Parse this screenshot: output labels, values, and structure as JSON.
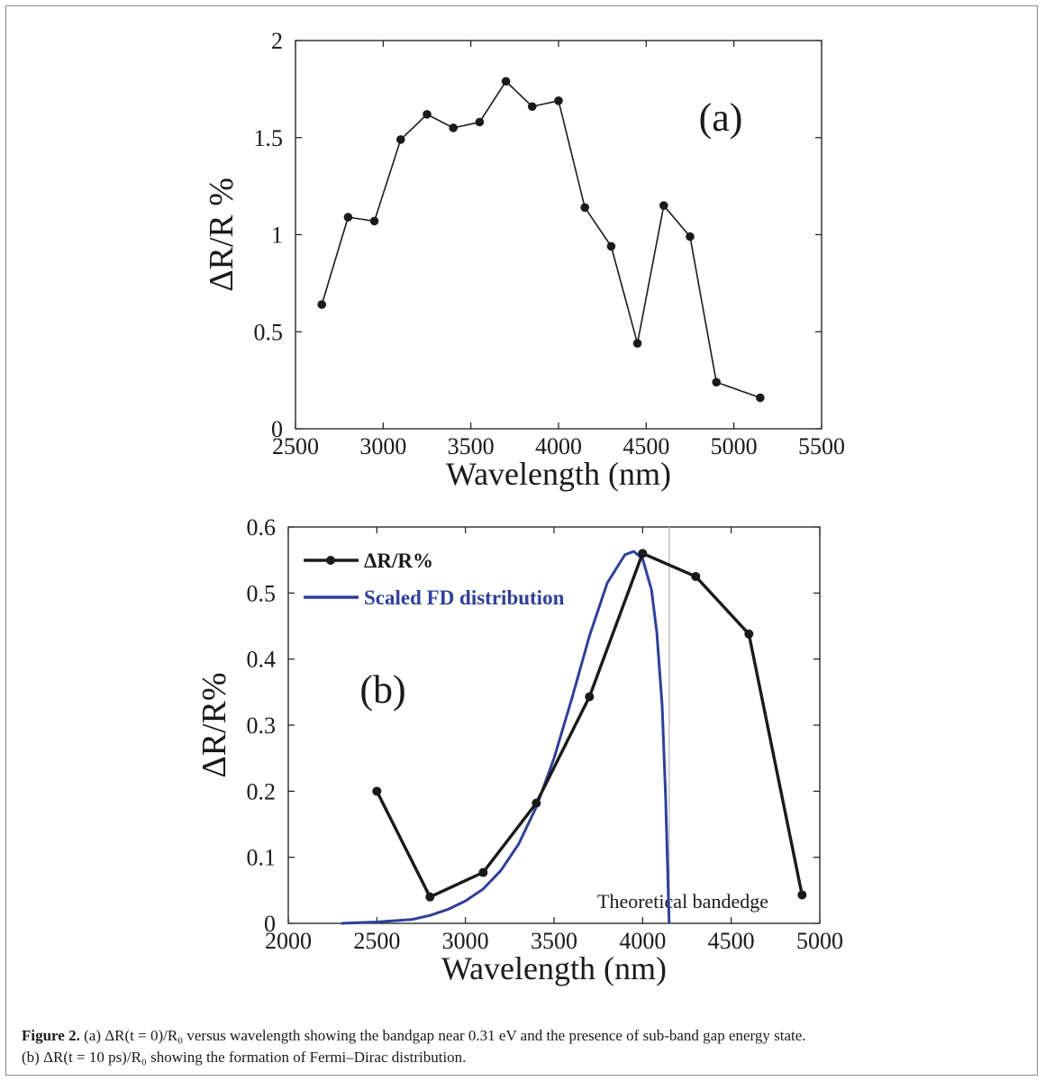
{
  "chart_data": [
    {
      "type": "line",
      "panel_label": "(a)",
      "xlabel": "Wavelength (nm)",
      "ylabel": "ΔR/R %",
      "xlim": [
        2500,
        5500
      ],
      "ylim": [
        0,
        2
      ],
      "xticks": [
        2500,
        3000,
        3500,
        4000,
        4500,
        5000,
        5500
      ],
      "yticks": [
        0,
        0.5,
        1,
        1.5,
        2
      ],
      "ytick_labels": [
        "0",
        "0.5",
        "1",
        "1.5",
        "2"
      ],
      "series": [
        {
          "x": [
            2650,
            2800,
            2950,
            3100,
            3250,
            3400,
            3550,
            3700,
            3850,
            4000,
            4150,
            4300,
            4450,
            4600,
            4750,
            4900,
            5150
          ],
          "y": [
            0.64,
            1.09,
            1.07,
            1.49,
            1.62,
            1.55,
            1.58,
            1.79,
            1.66,
            1.69,
            1.14,
            0.94,
            0.44,
            1.15,
            0.99,
            0.24,
            0.16
          ],
          "color": "#1a1a1a"
        }
      ]
    },
    {
      "type": "line",
      "panel_label": "(b)",
      "xlabel": "Wavelength (nm)",
      "ylabel": "ΔR/R%",
      "xlim": [
        2000,
        5000
      ],
      "ylim": [
        0,
        0.6
      ],
      "xticks": [
        2000,
        2500,
        3000,
        3500,
        4000,
        4500,
        5000
      ],
      "yticks": [
        0,
        0.1,
        0.2,
        0.3,
        0.4,
        0.5,
        0.6
      ],
      "ytick_labels": [
        "0",
        "0.1",
        "0.2",
        "0.3",
        "0.4",
        "0.5",
        "0.6"
      ],
      "legend_position": "top-left",
      "annotation": "Theoretical bandedge",
      "bandedge_x": 4150,
      "series": [
        {
          "name": "ΔR/R%",
          "x": [
            2500,
            2800,
            3100,
            3400,
            3700,
            4000,
            4300,
            4600,
            4900
          ],
          "y": [
            0.2,
            0.04,
            0.077,
            0.182,
            0.343,
            0.56,
            0.525,
            0.438,
            0.043
          ],
          "color": "#1a1a1a"
        },
        {
          "name": "Scaled FD distribution",
          "x": [
            2300,
            2500,
            2700,
            2800,
            2900,
            3000,
            3100,
            3200,
            3300,
            3400,
            3500,
            3600,
            3700,
            3800,
            3900,
            3950,
            4000,
            4050,
            4080,
            4110,
            4130,
            4150
          ],
          "y": [
            0.0,
            0.002,
            0.006,
            0.012,
            0.021,
            0.034,
            0.052,
            0.08,
            0.12,
            0.176,
            0.25,
            0.34,
            0.435,
            0.515,
            0.558,
            0.563,
            0.552,
            0.505,
            0.44,
            0.33,
            0.19,
            0.0
          ],
          "color": "#2f3f9b"
        }
      ]
    }
  ],
  "caption": {
    "label": "Figure 2.",
    "line1": "(a) ΔR(t = 0)/R₀ versus wavelength showing the bandgap near 0.31 eV and the presence of sub-band gap energy state.",
    "line2": "(b) ΔR(t = 10 ps)/R₀ showing the formation of Fermi–Dirac distribution."
  }
}
